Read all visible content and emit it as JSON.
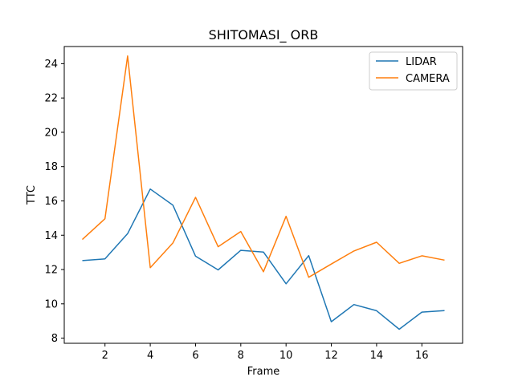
{
  "chart_data": {
    "type": "line",
    "title": "SHITOMASI_ ORB",
    "xlabel": "Frame",
    "ylabel": "TTC",
    "x": [
      1,
      2,
      3,
      4,
      5,
      6,
      7,
      8,
      9,
      10,
      11,
      12,
      13,
      14,
      15,
      16,
      17
    ],
    "xlim": [
      0.2,
      17.8
    ],
    "ylim": [
      7.7,
      25.0
    ],
    "xticks": [
      2,
      4,
      6,
      8,
      10,
      12,
      14,
      16
    ],
    "yticks": [
      8,
      10,
      12,
      14,
      16,
      18,
      20,
      22,
      24
    ],
    "grid": false,
    "legend_position": "top-right",
    "series": [
      {
        "name": "LIDAR",
        "color": "#1f77b4",
        "values": [
          12.52,
          12.62,
          14.09,
          16.69,
          15.75,
          12.78,
          11.98,
          13.12,
          13.02,
          11.17,
          12.81,
          8.96,
          9.96,
          9.6,
          8.52,
          9.52,
          9.61
        ]
      },
      {
        "name": "CAMERA",
        "color": "#ff7f0e",
        "values": [
          13.75,
          14.96,
          24.45,
          12.11,
          13.55,
          16.21,
          13.33,
          14.22,
          11.87,
          15.1,
          11.55,
          12.32,
          13.08,
          13.59,
          12.36,
          12.8,
          12.55
        ]
      }
    ]
  }
}
